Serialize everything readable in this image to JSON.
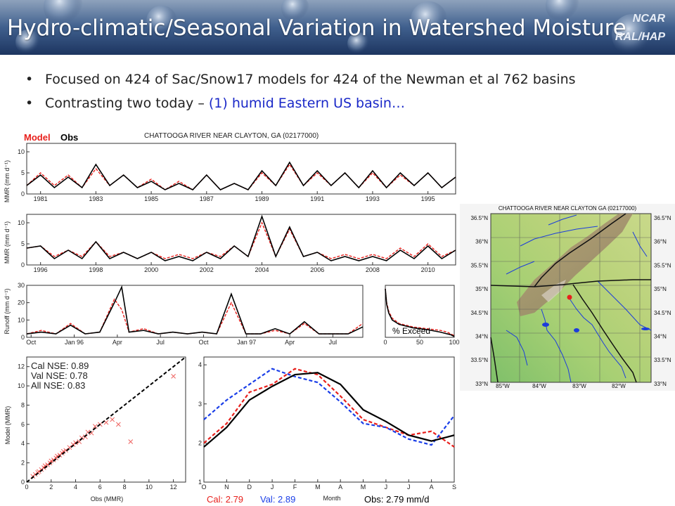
{
  "slide": {
    "title": "Hydro-climatic/Seasonal Variation in Watershed Moisture",
    "org_line1": "NCAR",
    "org_line2": "RAL/HAP",
    "bullets": [
      {
        "text": "Focused on 424 of Sac/Snow17 models for 424 of the Newman et al 762 basins",
        "highlight": ""
      },
      {
        "text": "Contrasting two today – ",
        "highlight": "(1) humid Eastern US basin…"
      }
    ],
    "colors": {
      "model": "#e8201c",
      "obs": "#000000",
      "val": "#1a3ee8",
      "highlight": "#1a28c8"
    }
  },
  "timeseries": {
    "legend_model": "Model",
    "legend_obs": "Obs",
    "title": "CHATTOOGA RIVER NEAR CLAYTON, GA (02177000)",
    "ylabel": "MMR (mm d⁻¹)",
    "panel1_years": [
      "1981",
      "1983",
      "1985",
      "1987",
      "1989",
      "1991",
      "1993",
      "1995"
    ],
    "panel1_yticks": [
      "0",
      "5",
      "10"
    ],
    "panel2_years": [
      "1996",
      "1998",
      "2000",
      "2002",
      "2004",
      "2006",
      "2008",
      "2010"
    ],
    "panel2_yticks": [
      "0",
      "5",
      "10"
    ]
  },
  "runoff": {
    "ylabel": "Runoff (mm d⁻¹)",
    "months": [
      "Oct",
      "Jan 96",
      "Apr",
      "Jul",
      "Oct",
      "Jan 97",
      "Apr",
      "Jul"
    ],
    "yticks": [
      "0",
      "10",
      "20",
      "30"
    ]
  },
  "exceed": {
    "label": "% Exceed",
    "xticks": [
      "0",
      "50",
      "100"
    ]
  },
  "scatter": {
    "ylabel": "Model (MMR)",
    "xlabel": "Obs (MMR)",
    "stat1": "Cal NSE: 0.89",
    "stat2": "Val NSE: 0.78",
    "stat3": "All NSE: 0.83",
    "xticks": [
      "0",
      "2",
      "4",
      "6",
      "8",
      "10",
      "12"
    ],
    "yticks": [
      "0",
      "2",
      "4",
      "6",
      "8",
      "10",
      "12"
    ]
  },
  "monthly": {
    "xlabel": "Month",
    "months": [
      "O",
      "N",
      "D",
      "J",
      "F",
      "M",
      "A",
      "M",
      "J",
      "J",
      "A",
      "S"
    ],
    "yticks": [
      "1",
      "2",
      "3",
      "4"
    ],
    "cal_label": "Cal: 2.79",
    "val_label": "Val: 2.89",
    "obs_label": "Obs: 2.79 mm/d"
  },
  "map": {
    "title": "CHATTOOGA RIVER NEAR CLAYTON GA (02177000)",
    "lat_labels": [
      "36.5°N",
      "36°N",
      "35.5°N",
      "35°N",
      "34.5°N",
      "34°N",
      "33.5°N",
      "33°N"
    ],
    "lon_labels": [
      "85°W",
      "84°W",
      "83°W",
      "82°W"
    ]
  },
  "chart_data": [
    {
      "type": "line",
      "title": "CHATTOOGA RIVER NEAR CLAYTON, GA (02177000)",
      "xlabel": "",
      "ylabel": "MMR (mm d⁻¹)",
      "xlim": [
        1980.5,
        1996
      ],
      "ylim": [
        0,
        12
      ],
      "series": [
        {
          "name": "Model",
          "x": [
            1980.5,
            1981,
            1981.5,
            1982,
            1982.5,
            1983,
            1983.5,
            1984,
            1984.5,
            1985,
            1985.5,
            1986,
            1986.5,
            1987,
            1987.5,
            1988,
            1988.5,
            1989,
            1989.5,
            1990,
            1990.5,
            1991,
            1991.5,
            1992,
            1992.5,
            1993,
            1993.5,
            1994,
            1994.5,
            1995,
            1995.5,
            1996
          ],
          "y": [
            2,
            5,
            2,
            4.5,
            1.5,
            6,
            2,
            4.5,
            1.5,
            3.5,
            1,
            3,
            1,
            4.5,
            1,
            2.5,
            1,
            5,
            2,
            7,
            2,
            5,
            2,
            5,
            1.5,
            5,
            1.5,
            4.5,
            2,
            5,
            1.5,
            4
          ]
        },
        {
          "name": "Obs",
          "x": [
            1980.5,
            1981,
            1981.5,
            1982,
            1982.5,
            1983,
            1983.5,
            1984,
            1984.5,
            1985,
            1985.5,
            1986,
            1986.5,
            1987,
            1987.5,
            1988,
            1988.5,
            1989,
            1989.5,
            1990,
            1990.5,
            1991,
            1991.5,
            1992,
            1992.5,
            1993,
            1993.5,
            1994,
            1994.5,
            1995,
            1995.5,
            1996
          ],
          "y": [
            2,
            4.5,
            1.5,
            4,
            1.5,
            7,
            2,
            4.5,
            1.5,
            3,
            1,
            2.5,
            1,
            4.5,
            1,
            2.5,
            1,
            5.5,
            2,
            7.5,
            2,
            5.5,
            2,
            5,
            1.5,
            5.5,
            1.5,
            5,
            2,
            5,
            1.5,
            4
          ]
        }
      ]
    },
    {
      "type": "line",
      "title": "",
      "xlabel": "",
      "ylabel": "MMR (mm d⁻¹)",
      "xlim": [
        1995.5,
        2011
      ],
      "ylim": [
        0,
        12
      ],
      "series": [
        {
          "name": "Model",
          "x": [
            1995.5,
            1996,
            1996.5,
            1997,
            1997.5,
            1998,
            1998.5,
            1999,
            1999.5,
            2000,
            2000.5,
            2001,
            2001.5,
            2002,
            2002.5,
            2003,
            2003.5,
            2004,
            2004.5,
            2005,
            2005.5,
            2006,
            2006.5,
            2007,
            2007.5,
            2008,
            2008.5,
            2009,
            2009.5,
            2010,
            2010.5,
            2011
          ],
          "y": [
            4,
            4.5,
            2,
            3.5,
            2,
            5.5,
            2,
            3,
            1.5,
            3,
            1.5,
            2.5,
            1.5,
            3,
            2,
            4.5,
            2,
            10,
            2,
            8.5,
            2,
            3,
            1.5,
            2.5,
            1.5,
            2.5,
            1.5,
            4,
            2,
            5,
            2,
            3.5
          ]
        },
        {
          "name": "Obs",
          "x": [
            1995.5,
            1996,
            1996.5,
            1997,
            1997.5,
            1998,
            1998.5,
            1999,
            1999.5,
            2000,
            2000.5,
            2001,
            2001.5,
            2002,
            2002.5,
            2003,
            2003.5,
            2004,
            2004.5,
            2005,
            2005.5,
            2006,
            2006.5,
            2007,
            2007.5,
            2008,
            2008.5,
            2009,
            2009.5,
            2010,
            2010.5,
            2011
          ],
          "y": [
            4,
            4.5,
            1.5,
            3.5,
            1.5,
            5.5,
            1.5,
            3,
            1.5,
            3,
            1,
            2,
            1,
            3,
            1.5,
            4.5,
            2,
            11.5,
            2,
            9,
            2,
            3,
            1,
            2,
            1,
            2,
            1,
            3.5,
            1.5,
            4.5,
            1.5,
            3.5
          ]
        }
      ]
    },
    {
      "type": "line",
      "title": "",
      "xlabel": "",
      "ylabel": "Runoff (mm d⁻¹)",
      "xlim": [
        0,
        23
      ],
      "ylim": [
        0,
        30
      ],
      "series": [
        {
          "name": "Model",
          "x": [
            0,
            1,
            2,
            3,
            4,
            5,
            6,
            6.5,
            7,
            8,
            9,
            10,
            11,
            12,
            13,
            14,
            15,
            16,
            17,
            18,
            19,
            20,
            21,
            22,
            23
          ],
          "y": [
            2,
            4,
            2,
            8,
            2,
            3,
            22,
            16,
            3,
            5,
            2,
            3,
            2,
            3,
            2,
            20,
            2,
            2,
            4,
            2,
            8,
            2,
            2,
            2,
            8
          ]
        },
        {
          "name": "Obs",
          "x": [
            0,
            1,
            2,
            3,
            4,
            5,
            6,
            6.5,
            7,
            8,
            9,
            10,
            11,
            12,
            13,
            14,
            15,
            16,
            17,
            18,
            19,
            20,
            21,
            22,
            23
          ],
          "y": [
            2,
            3,
            2,
            7,
            2,
            3,
            20,
            29,
            3,
            4,
            2,
            3,
            2,
            3,
            2,
            25,
            2,
            2,
            5,
            2,
            9,
            2,
            2,
            2,
            6
          ]
        }
      ]
    },
    {
      "type": "line",
      "title": "",
      "xlabel": "% Exceed",
      "ylabel": "",
      "xlim": [
        0,
        100
      ],
      "ylim": [
        0,
        30
      ],
      "series": [
        {
          "name": "Model",
          "x": [
            0,
            2,
            5,
            10,
            20,
            40,
            60,
            80,
            90,
            95,
            100
          ],
          "y": [
            28,
            20,
            15,
            11,
            8,
            6,
            5,
            4,
            3,
            2,
            1
          ]
        },
        {
          "name": "Obs",
          "x": [
            0,
            2,
            5,
            10,
            20,
            40,
            60,
            80,
            90,
            95,
            100
          ],
          "y": [
            28,
            19,
            14,
            10,
            7.5,
            5.5,
            4.5,
            3,
            2,
            1.5,
            0.5
          ]
        }
      ]
    },
    {
      "type": "scatter",
      "title": "",
      "xlabel": "Obs (MMR)",
      "ylabel": "Model (MMR)",
      "xlim": [
        0,
        13
      ],
      "ylim": [
        0,
        13
      ],
      "series": [
        {
          "name": "Cal NSE: 0.89",
          "x": [
            0.5,
            0.7,
            0.9,
            1,
            1.2,
            1.4,
            1.5,
            1.7,
            1.9,
            2,
            2.2,
            2.4,
            2.5,
            2.7,
            2.9,
            3,
            3.2,
            3.5,
            3.8,
            4,
            4.3,
            4.5,
            4.8,
            5,
            5.3,
            5.6,
            6,
            6.5,
            7,
            7.5,
            8.5,
            12
          ],
          "y": [
            0.6,
            0.8,
            1,
            1.1,
            1.3,
            1.5,
            1.7,
            1.8,
            2,
            2.2,
            2.3,
            2.5,
            2.7,
            2.8,
            3,
            3.2,
            3.3,
            3.6,
            3.9,
            4.1,
            4.2,
            4.6,
            4.7,
            5.2,
            5.1,
            5.8,
            6,
            6.2,
            6.5,
            6,
            4.2,
            11
          ]
        }
      ]
    },
    {
      "type": "line",
      "title": "",
      "xlabel": "Month",
      "ylabel": "",
      "categories": [
        "O",
        "N",
        "D",
        "J",
        "F",
        "M",
        "A",
        "M",
        "J",
        "J",
        "A",
        "S"
      ],
      "ylim": [
        1,
        4.2
      ],
      "series": [
        {
          "name": "Cal: 2.79",
          "values": [
            2.0,
            2.5,
            3.3,
            3.5,
            3.9,
            3.75,
            3.2,
            2.6,
            2.4,
            2.2,
            2.3,
            1.9
          ]
        },
        {
          "name": "Val: 2.89",
          "values": [
            2.6,
            3.1,
            3.5,
            3.9,
            3.7,
            3.55,
            3.05,
            2.5,
            2.4,
            2.1,
            1.95,
            2.7
          ]
        },
        {
          "name": "Obs: 2.79 mm/d",
          "values": [
            1.9,
            2.4,
            3.1,
            3.45,
            3.75,
            3.8,
            3.5,
            2.85,
            2.55,
            2.2,
            2.05,
            2.2
          ]
        }
      ]
    }
  ]
}
